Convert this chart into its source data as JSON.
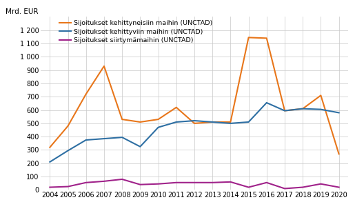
{
  "years": [
    2004,
    2005,
    2006,
    2007,
    2008,
    2009,
    2010,
    2011,
    2012,
    2013,
    2014,
    2015,
    2016,
    2017,
    2018,
    2019,
    2020
  ],
  "developed": [
    320,
    480,
    720,
    930,
    530,
    510,
    530,
    620,
    500,
    510,
    510,
    1145,
    1140,
    595,
    610,
    710,
    270
  ],
  "developing": [
    210,
    295,
    375,
    385,
    395,
    325,
    470,
    510,
    520,
    510,
    500,
    510,
    655,
    595,
    610,
    605,
    580
  ],
  "transition": [
    20,
    25,
    55,
    65,
    80,
    40,
    45,
    55,
    55,
    55,
    60,
    20,
    55,
    10,
    20,
    45,
    20
  ],
  "legend_developed": "Sijoitukset kehittyneisiin maihin (UNCTAD)",
  "legend_developing": "Sijoitukset kehittyviin maihin (UNCTAD)",
  "legend_transition": "Sijoitukset siirtymämaihin (UNCTAD)",
  "ylabel": "Mrd. EUR",
  "color_developed": "#E8761A",
  "color_developing": "#2E6FA3",
  "color_transition": "#A0228A",
  "ylim": [
    0,
    1300
  ],
  "yticks": [
    0,
    100,
    200,
    300,
    400,
    500,
    600,
    700,
    800,
    900,
    1000,
    1100,
    1200
  ],
  "background_color": "#ffffff",
  "grid_color": "#c8c8c8"
}
